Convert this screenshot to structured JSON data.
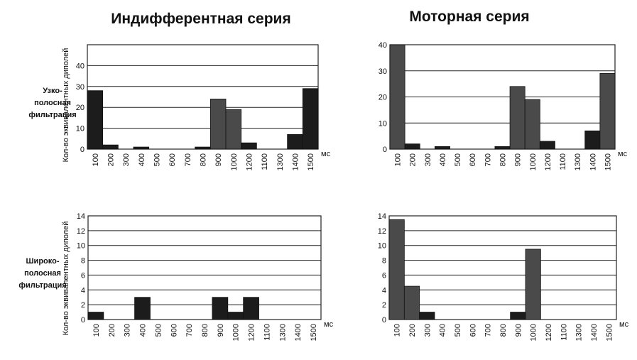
{
  "column_titles": [
    "Индифферентная серия",
    "Моторная  серия"
  ],
  "row_labels": [
    [
      "Узко-",
      "полосная",
      "фильтрация"
    ],
    [
      "Широко-",
      "полосная",
      "фильтрация"
    ]
  ],
  "ylabel": "Кол-во эквивалентных диполей",
  "unit": "мс",
  "chart_data": [
    {
      "type": "bar",
      "column": "Индифферентная серия",
      "row": "Узко-полосная фильтрация",
      "categories": [
        "100",
        "200",
        "300",
        "400",
        "500",
        "600",
        "700",
        "800",
        "900",
        "1000",
        "1200",
        "1100",
        "1300",
        "1400",
        "1500"
      ],
      "values": [
        28,
        2,
        0,
        1,
        0,
        0,
        0,
        1,
        24,
        19,
        3,
        0,
        0,
        7,
        29
      ],
      "ylabel": "Кол-во эквивалентных диполей",
      "yticks": [
        0,
        10,
        20,
        30,
        40
      ],
      "ylim": [
        0,
        50
      ],
      "grid": true,
      "shade": [
        "dark",
        "dark",
        "dark",
        "dark",
        "dark",
        "dark",
        "dark",
        "dark",
        "mid",
        "mid",
        "dark",
        "dark",
        "dark",
        "dark",
        "dark"
      ]
    },
    {
      "type": "bar",
      "column": "Моторная  серия",
      "row": "Узко-полосная фильтрация",
      "categories": [
        "100",
        "200",
        "300",
        "400",
        "500",
        "600",
        "700",
        "800",
        "900",
        "1000",
        "1200",
        "1100",
        "1300",
        "1400",
        "1500"
      ],
      "values": [
        40,
        2,
        0,
        1,
        0,
        0,
        0,
        1,
        24,
        19,
        3,
        0,
        0,
        7,
        29
      ],
      "yticks": [
        0,
        10,
        20,
        30,
        40
      ],
      "ylim": [
        0,
        40
      ],
      "grid": true,
      "shade": [
        "mid",
        "dark",
        "dark",
        "dark",
        "dark",
        "dark",
        "dark",
        "dark",
        "mid",
        "mid",
        "dark",
        "dark",
        "dark",
        "dark",
        "mid"
      ]
    },
    {
      "type": "bar",
      "column": "Индифферентная серия",
      "row": "Широко-полосная фильтрация",
      "categories": [
        "100",
        "200",
        "300",
        "400",
        "500",
        "600",
        "700",
        "800",
        "900",
        "1000",
        "1200",
        "1100",
        "1300",
        "1400",
        "1500"
      ],
      "values": [
        1,
        0,
        0,
        3,
        0,
        0,
        0,
        0,
        3,
        1,
        3,
        0,
        0,
        0,
        0
      ],
      "ylabel": "Кол-во эквивалентных диполей",
      "yticks": [
        0,
        2,
        4,
        6,
        8,
        10,
        12,
        14
      ],
      "ylim": [
        0,
        14
      ],
      "grid": true,
      "shade": [
        "dark",
        "dark",
        "dark",
        "dark",
        "dark",
        "dark",
        "dark",
        "dark",
        "dark",
        "dark",
        "dark",
        "dark",
        "dark",
        "dark",
        "dark"
      ]
    },
    {
      "type": "bar",
      "column": "Моторная  серия",
      "row": "Широко-полосная фильтрация",
      "categories": [
        "100",
        "200",
        "300",
        "400",
        "500",
        "600",
        "700",
        "800",
        "900",
        "1000",
        "1200",
        "1100",
        "1300",
        "1400",
        "1500"
      ],
      "values": [
        13.5,
        4.5,
        1,
        0,
        0,
        0,
        0,
        0,
        1,
        9.5,
        0,
        0,
        0,
        0,
        0
      ],
      "yticks": [
        0,
        2,
        4,
        6,
        8,
        10,
        12,
        14
      ],
      "ylim": [
        0,
        14
      ],
      "grid": true,
      "shade": [
        "mid",
        "mid",
        "dark",
        "dark",
        "dark",
        "dark",
        "dark",
        "dark",
        "dark",
        "mid",
        "dark",
        "dark",
        "dark",
        "dark",
        "dark"
      ]
    }
  ]
}
